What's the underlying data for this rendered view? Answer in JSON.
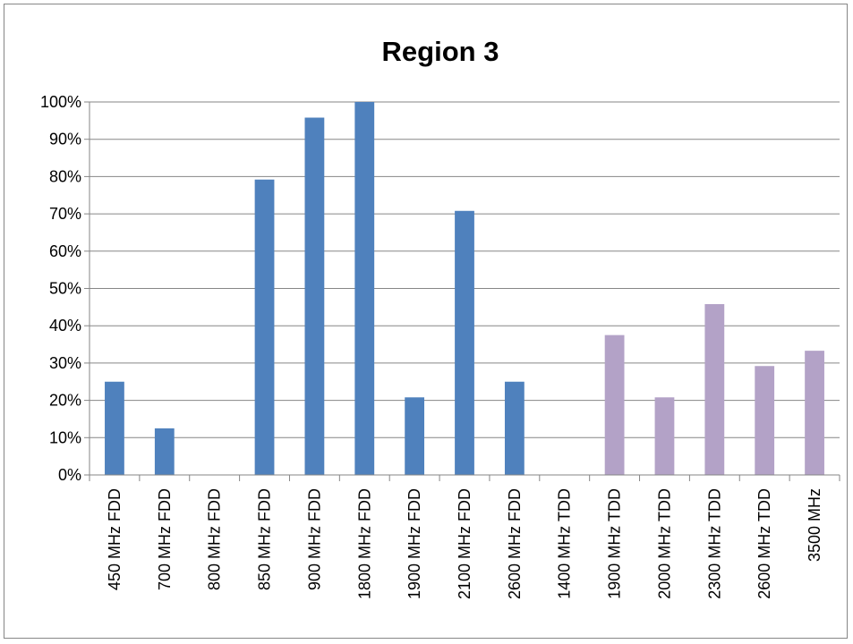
{
  "chart_data": {
    "type": "bar",
    "title": "Region 3",
    "xlabel": "",
    "ylabel": "",
    "ylim": [
      0,
      100
    ],
    "y_ticks": [
      "0%",
      "10%",
      "20%",
      "30%",
      "40%",
      "50%",
      "60%",
      "70%",
      "80%",
      "90%",
      "100%"
    ],
    "grid": true,
    "legend": "none",
    "categories": [
      "450 MHz FDD",
      "700 MHz FDD",
      "800 MHz FDD",
      "850 MHz FDD",
      "900 MHz FDD",
      "1800 MHz FDD",
      "1900 MHz FDD",
      "2100 MHz FDD",
      "2600 MHz FDD",
      "1400 MHz TDD",
      "1900 MHz TDD",
      "2000 MHz TDD",
      "2300 MHz TDD",
      "2600 MHz TDD",
      "3500 MHz"
    ],
    "values": [
      25,
      12.5,
      0,
      79.2,
      95.8,
      100,
      20.8,
      70.8,
      25,
      0,
      37.5,
      20.8,
      45.8,
      29.2,
      33.3
    ],
    "bar_colors": [
      "#4f81bd",
      "#4f81bd",
      "#4f81bd",
      "#4f81bd",
      "#4f81bd",
      "#4f81bd",
      "#4f81bd",
      "#4f81bd",
      "#4f81bd",
      "#b3a2c7",
      "#b3a2c7",
      "#b3a2c7",
      "#b3a2c7",
      "#b3a2c7",
      "#b3a2c7"
    ]
  }
}
